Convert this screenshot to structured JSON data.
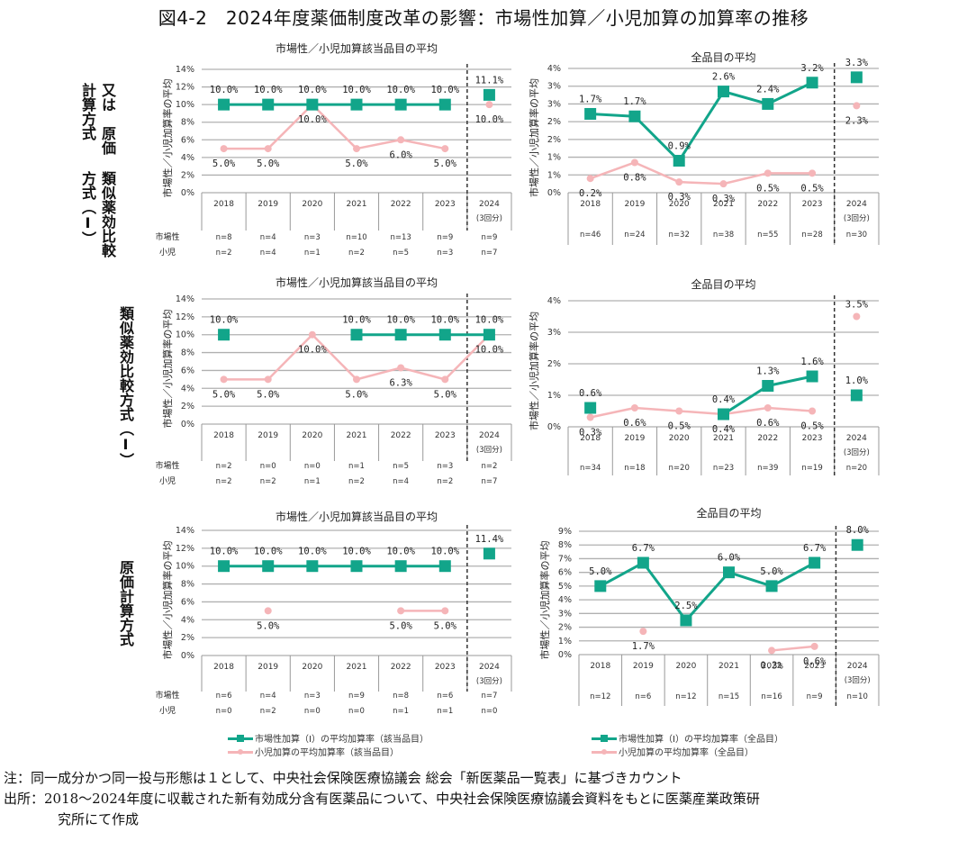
{
  "figure": {
    "title": "図4-2　2024年度薬価制度改革の影響：市場性加算／小児加算の加算率の推移",
    "colors": {
      "market": "#12a58a",
      "pediatric": "#f5b5b8",
      "grid": "#b0b0b0",
      "axis_text": "#333333"
    }
  },
  "row_labels": [
    {
      "lines": [
        "類似薬効比較方式（Ⅰ）",
        "又は　原価計算方式"
      ]
    },
    {
      "lines": [
        "類似薬効比較方式（Ⅰ）"
      ]
    },
    {
      "lines": [
        "原価計算方式"
      ]
    }
  ],
  "table_row_labels": {
    "market": "市場性",
    "pediatric": "小児"
  },
  "ylabel": "市場性／小児加算率の平均",
  "legend": {
    "left": {
      "market": "市場性加算（Ⅰ）の平均加算率（該当品目）",
      "pediatric": "小児加算の平均加算率（該当品目）"
    },
    "right": {
      "market": "市場性加算（Ⅰ）の平均加算率（全品目）",
      "pediatric": "小児加算の平均加算率（全品目）"
    }
  },
  "notes": {
    "note": "注：同一成分かつ同一投与形態は１として、中央社会保険医療協議会 総会「新医薬品一覧表」に基づきカウント",
    "source_line1": "出所：2018〜2024年度に収載された新有効成分含有医薬品について、中央社会保険医療協議会資料をもとに医薬産業政策研",
    "source_line2": "究所にて作成"
  },
  "chart_data": [
    {
      "id": "r1-left",
      "type": "line",
      "title": "市場性／小児加算該当品目の平均",
      "categories": [
        "2018",
        "2019",
        "2020",
        "2021",
        "2022",
        "2023",
        "2024"
      ],
      "category_sub": [
        "",
        "",
        "",
        "",
        "",
        "",
        "(3回分)"
      ],
      "yticks": [
        "0%",
        "2%",
        "4%",
        "6%",
        "8%",
        "10%",
        "12%",
        "14%"
      ],
      "ylim": [
        0,
        14
      ],
      "series": [
        {
          "name": "市場性加算（Ⅰ）の平均加算率（該当品目）",
          "key": "market",
          "values": [
            10.0,
            10.0,
            10.0,
            10.0,
            10.0,
            10.0,
            11.1
          ],
          "labels": [
            "10.0%",
            "10.0%",
            "10.0%",
            "10.0%",
            "10.0%",
            "10.0%",
            "11.1%"
          ]
        },
        {
          "name": "小児加算の平均加算率（該当品目）",
          "key": "pediatric",
          "values": [
            5.0,
            5.0,
            10.0,
            5.0,
            6.0,
            5.0,
            10.0
          ],
          "labels": [
            "5.0%",
            "5.0%",
            "10.0%",
            "5.0%",
            "6.0%",
            "5.0%",
            "10.0%"
          ]
        }
      ],
      "n_market": [
        "n=8",
        "n=4",
        "n=3",
        "n=10",
        "n=13",
        "n=9",
        "n=9"
      ],
      "n_pediatric": [
        "n=2",
        "n=4",
        "n=1",
        "n=2",
        "n=5",
        "n=3",
        "n=7"
      ]
    },
    {
      "id": "r1-right",
      "type": "line",
      "title": "全品目の平均",
      "categories": [
        "2018",
        "2019",
        "2020",
        "2021",
        "2022",
        "2023",
        "2024"
      ],
      "category_sub": [
        "",
        "",
        "",
        "",
        "",
        "",
        "(3回分)"
      ],
      "yticks": [
        "0%",
        "1%",
        "1%",
        "2%",
        "2%",
        "3%",
        "3%",
        "4%"
      ],
      "ylim": [
        0,
        3.5
      ],
      "series": [
        {
          "name": "市場性加算（Ⅰ）の平均加算率（全品目）",
          "key": "market",
          "values": [
            1.7,
            1.7,
            0.9,
            2.6,
            2.4,
            3.2,
            3.3
          ],
          "plot_values": [
            2.22,
            2.15,
            0.9,
            2.85,
            2.5,
            3.1,
            3.25
          ],
          "labels": [
            "1.7%",
            "1.7%",
            "0.9%",
            "2.6%",
            "2.4%",
            "3.2%",
            "3.3%"
          ]
        },
        {
          "name": "小児加算の平均加算率（全品目）",
          "key": "pediatric",
          "values": [
            0.2,
            0.8,
            0.3,
            0.3,
            0.5,
            0.5,
            2.3
          ],
          "plot_values": [
            0.4,
            0.85,
            0.3,
            0.25,
            0.55,
            0.55,
            2.45
          ],
          "labels": [
            "0.2%",
            "0.8%",
            "0.3%",
            "0.3%",
            "0.5%",
            "0.5%",
            "2.3%"
          ]
        }
      ],
      "n_all": [
        "n=46",
        "n=24",
        "n=32",
        "n=38",
        "n=55",
        "n=28",
        "n=30"
      ]
    },
    {
      "id": "r2-left",
      "type": "line",
      "title": "市場性／小児加算該当品目の平均",
      "categories": [
        "2018",
        "2019",
        "2020",
        "2021",
        "2022",
        "2023",
        "2024"
      ],
      "category_sub": [
        "",
        "",
        "",
        "",
        "",
        "",
        "(3回分)"
      ],
      "yticks": [
        "0%",
        "2%",
        "4%",
        "6%",
        "8%",
        "10%",
        "12%",
        "14%"
      ],
      "ylim": [
        0,
        14
      ],
      "series": [
        {
          "name": "市場性加算（Ⅰ）の平均加算率（該当品目）",
          "key": "market",
          "values": [
            10.0,
            null,
            null,
            10.0,
            10.0,
            10.0,
            10.0
          ],
          "labels": [
            "10.0%",
            "",
            "",
            "10.0%",
            "10.0%",
            "10.0%",
            "10.0%"
          ]
        },
        {
          "name": "小児加算の平均加算率（該当品目）",
          "key": "pediatric",
          "values": [
            5.0,
            5.0,
            10.0,
            5.0,
            6.3,
            5.0,
            10.0
          ],
          "labels": [
            "5.0%",
            "5.0%",
            "10.0%",
            "5.0%",
            "6.3%",
            "5.0%",
            "10.0%"
          ]
        }
      ],
      "connect_2024": true,
      "n_market": [
        "n=2",
        "n=0",
        "n=0",
        "n=1",
        "n=5",
        "n=3",
        "n=2"
      ],
      "n_pediatric": [
        "n=2",
        "n=2",
        "n=1",
        "n=2",
        "n=4",
        "n=2",
        "n=7"
      ]
    },
    {
      "id": "r2-right",
      "type": "line",
      "title": "全品目の平均",
      "categories": [
        "2018",
        "2019",
        "2020",
        "2021",
        "2022",
        "2023",
        "2024"
      ],
      "category_sub": [
        "",
        "",
        "",
        "",
        "",
        "",
        "(3回分)"
      ],
      "yticks": [
        "0%",
        "1%",
        "2%",
        "3%",
        "4%"
      ],
      "ylim": [
        0,
        4
      ],
      "series": [
        {
          "name": "市場性加算（Ⅰ）の平均加算率（全品目）",
          "key": "market",
          "values": [
            0.6,
            null,
            null,
            0.4,
            1.3,
            1.6,
            1.0
          ],
          "labels": [
            "0.6%",
            "",
            "",
            "0.4%",
            "1.3%",
            "1.6%",
            "1.0%"
          ]
        },
        {
          "name": "小児加算の平均加算率（全品目）",
          "key": "pediatric",
          "values": [
            0.3,
            0.6,
            0.5,
            0.4,
            0.6,
            0.5,
            3.5
          ],
          "labels": [
            "0.3%",
            "0.6%",
            "0.5%",
            "0.4%",
            "0.6%",
            "0.5%",
            "3.5%"
          ]
        }
      ],
      "n_all": [
        "n=34",
        "n=18",
        "n=20",
        "n=23",
        "n=39",
        "n=19",
        "n=20"
      ]
    },
    {
      "id": "r3-left",
      "type": "line",
      "title": "市場性／小児加算該当品目の平均",
      "categories": [
        "2018",
        "2019",
        "2020",
        "2021",
        "2022",
        "2023",
        "2024"
      ],
      "category_sub": [
        "",
        "",
        "",
        "",
        "",
        "",
        "(3回分)"
      ],
      "yticks": [
        "0%",
        "2%",
        "4%",
        "6%",
        "8%",
        "10%",
        "12%",
        "14%"
      ],
      "ylim": [
        0,
        14
      ],
      "series": [
        {
          "name": "市場性加算（Ⅰ）の平均加算率（該当品目）",
          "key": "market",
          "values": [
            10.0,
            10.0,
            10.0,
            10.0,
            10.0,
            10.0,
            11.4
          ],
          "labels": [
            "10.0%",
            "10.0%",
            "10.0%",
            "10.0%",
            "10.0%",
            "10.0%",
            "11.4%"
          ]
        },
        {
          "name": "小児加算の平均加算率（該当品目）",
          "key": "pediatric",
          "values": [
            null,
            5.0,
            null,
            null,
            5.0,
            5.0,
            null
          ],
          "labels": [
            "",
            "5.0%",
            "",
            "",
            "5.0%",
            "5.0%",
            ""
          ]
        }
      ],
      "n_market": [
        "n=6",
        "n=4",
        "n=3",
        "n=9",
        "n=8",
        "n=6",
        "n=7"
      ],
      "n_pediatric": [
        "n=0",
        "n=2",
        "n=0",
        "n=0",
        "n=1",
        "n=1",
        "n=0"
      ]
    },
    {
      "id": "r3-right",
      "type": "line",
      "title": "全品目の平均",
      "categories": [
        "2018",
        "2019",
        "2020",
        "2021",
        "2022",
        "2023",
        "2024"
      ],
      "category_sub": [
        "",
        "",
        "",
        "",
        "",
        "",
        "(3回分)"
      ],
      "yticks": [
        "0%",
        "1%",
        "2%",
        "3%",
        "4%",
        "5%",
        "6%",
        "7%",
        "8%",
        "9%"
      ],
      "ylim": [
        0,
        9
      ],
      "series": [
        {
          "name": "市場性加算（Ⅰ）の平均加算率（全品目）",
          "key": "market",
          "values": [
            5.0,
            6.7,
            2.5,
            6.0,
            5.0,
            6.7,
            8.0
          ],
          "labels": [
            "5.0%",
            "6.7%",
            "2.5%",
            "6.0%",
            "5.0%",
            "6.7%",
            "8.0%"
          ]
        },
        {
          "name": "小児加算の平均加算率（全品目）",
          "key": "pediatric",
          "values": [
            null,
            1.7,
            null,
            null,
            0.3,
            0.6,
            null
          ],
          "labels": [
            "",
            "1.7%",
            "",
            "",
            "0.3%",
            "0.6%",
            ""
          ]
        }
      ],
      "n_all": [
        "n=12",
        "n=6",
        "n=12",
        "n=15",
        "n=16",
        "n=9",
        "n=10"
      ]
    }
  ]
}
